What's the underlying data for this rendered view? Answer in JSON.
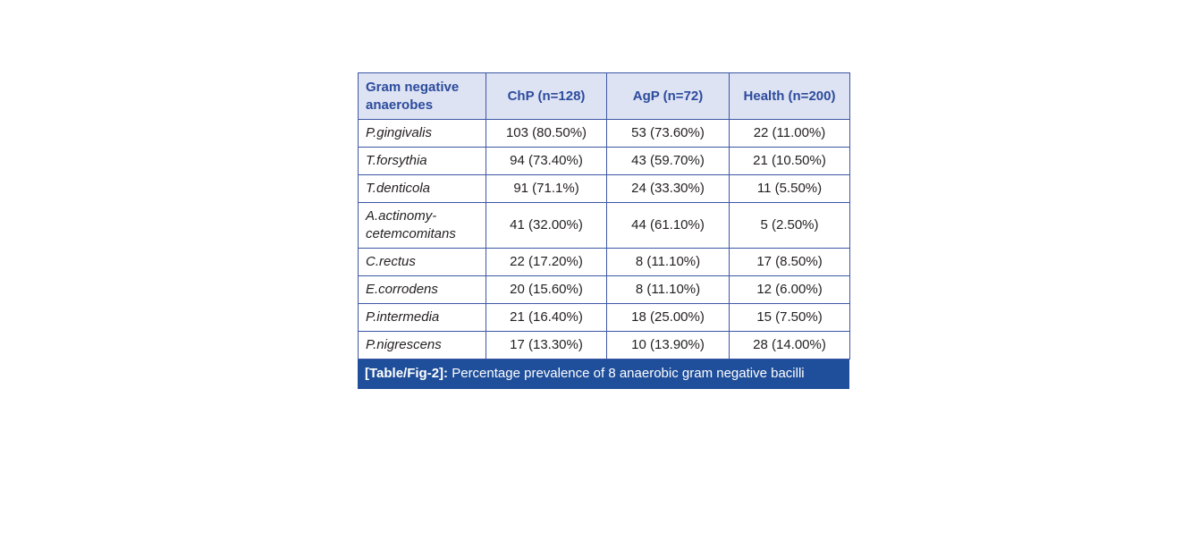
{
  "chart_data": {
    "type": "table",
    "title": "[Table/Fig-2]: Percentage prevalence of 8 anaerobic gram negative bacilli",
    "columns": [
      "Gram negative anaerobes",
      "ChP (n=128)",
      "AgP (n=72)",
      "Health (n=200)"
    ],
    "rows": [
      [
        "P.gingivalis",
        "103 (80.50%)",
        "53 (73.60%)",
        "22 (11.00%)"
      ],
      [
        "T.forsythia",
        "94 (73.40%)",
        "43 (59.70%)",
        "21 (10.50%)"
      ],
      [
        "T.denticola",
        "91 (71.1%)",
        "24 (33.30%)",
        "11 (5.50%)"
      ],
      [
        "A.actinomy-cetemcomitans",
        "41 (32.00%)",
        "44 (61.10%)",
        "5 (2.50%)"
      ],
      [
        "C.rectus",
        "22 (17.20%)",
        "8 (11.10%)",
        "17 (8.50%)"
      ],
      [
        "E.corrodens",
        "20 (15.60%)",
        "8 (11.10%)",
        "12 (6.00%)"
      ],
      [
        "P.intermedia",
        "21 (16.40%)",
        "18 (25.00%)",
        "15 (7.50%)"
      ],
      [
        "P.nigrescens",
        "17 (13.30%)",
        "10 (13.90%)",
        "28 (14.00%)"
      ]
    ]
  },
  "caption": {
    "label": "[Table/Fig-2]:",
    "text": "Percentage prevalence of 8 anaerobic gram negative bacilli"
  },
  "colors": {
    "header_bg": "#dde3f2",
    "header_text": "#2d4b9e",
    "border": "#3c57a5",
    "body_text": "#231f20",
    "caption_bg": "#1f4e9a",
    "caption_text": "#ffffff"
  }
}
